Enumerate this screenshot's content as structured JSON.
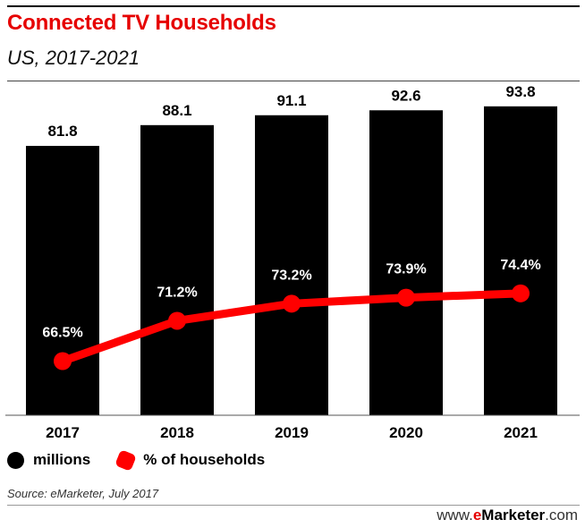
{
  "header": {
    "title": "Connected TV Households",
    "subtitle": "US, 2017-2021"
  },
  "legend": {
    "bars_label": "millions",
    "line_label": "% of households"
  },
  "footer": {
    "source": "Source: eMarketer, July 2017",
    "brand_prefix": "www.",
    "brand_e": "e",
    "brand_name": "Marketer",
    "brand_suffix": ".com"
  },
  "colors": {
    "bar": "#000000",
    "line": "#ff0000",
    "title": "#e60000"
  },
  "chart_data": {
    "type": "bar",
    "title": "Connected TV Households",
    "subtitle": "US, 2017-2021",
    "categories": [
      "2017",
      "2018",
      "2019",
      "2020",
      "2021"
    ],
    "series": [
      {
        "name": "millions",
        "type": "bar",
        "values": [
          81.8,
          88.1,
          91.1,
          92.6,
          93.8
        ],
        "labels": [
          "81.8",
          "88.1",
          "91.1",
          "92.6",
          "93.8"
        ]
      },
      {
        "name": "% of households",
        "type": "line",
        "values": [
          66.5,
          71.2,
          73.2,
          73.9,
          74.4
        ],
        "labels": [
          "66.5%",
          "71.2%",
          "73.2%",
          "73.9%",
          "74.4%"
        ]
      }
    ],
    "legend_position": "bottom-left"
  }
}
